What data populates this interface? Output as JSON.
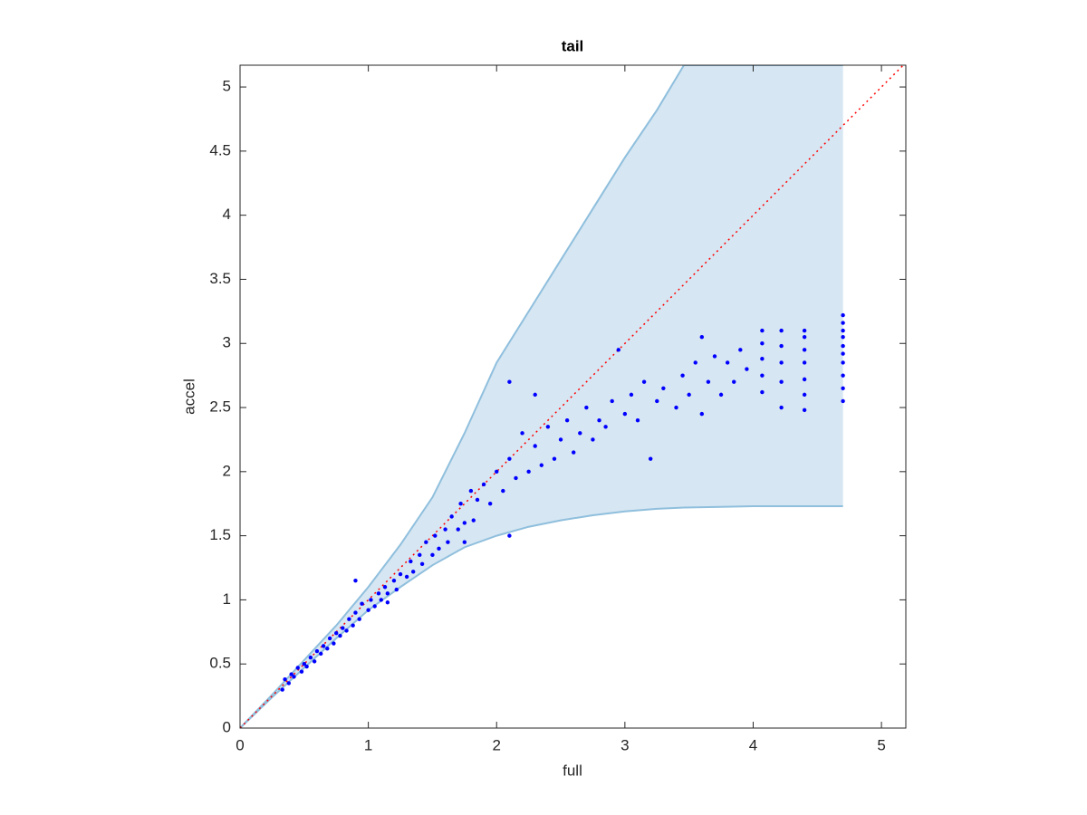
{
  "chart_data": {
    "type": "scatter",
    "title": "tail",
    "x_label": "full",
    "y_label": "accel",
    "xlim": [
      0,
      5.19
    ],
    "ylim": [
      0,
      5.17
    ],
    "xticks": [
      0,
      1,
      2,
      3,
      4,
      5
    ],
    "yticks": [
      0,
      0.5,
      1,
      1.5,
      2,
      2.5,
      3,
      3.5,
      4,
      4.5,
      5
    ],
    "band": {
      "color": "#d6e6f2",
      "edge_color": "#8fbfdd",
      "x": [
        0,
        0.25,
        0.5,
        0.75,
        1,
        1.25,
        1.5,
        1.75,
        2,
        2.25,
        2.5,
        2.75,
        3,
        3.25,
        3.46,
        3.75,
        4,
        4.25,
        4.7
      ],
      "upper": [
        0,
        0.26,
        0.53,
        0.8,
        1.1,
        1.43,
        1.8,
        2.3,
        2.85,
        3.25,
        3.65,
        4.05,
        4.45,
        4.82,
        5.17,
        5.17,
        5.17,
        5.17,
        5.17
      ],
      "lower": [
        0,
        0.24,
        0.47,
        0.7,
        0.92,
        1.1,
        1.27,
        1.41,
        1.5,
        1.57,
        1.62,
        1.66,
        1.69,
        1.71,
        1.72,
        1.725,
        1.73,
        1.73,
        1.73
      ]
    },
    "reference_line": {
      "color": "#ff0000",
      "x": [
        0,
        5.19
      ],
      "values": [
        0,
        5.19
      ]
    },
    "series": [
      {
        "color": "#0000ff",
        "x": [
          0.33,
          0.35,
          0.38,
          0.4,
          0.42,
          0.45,
          0.48,
          0.5,
          0.52,
          0.55,
          0.58,
          0.6,
          0.63,
          0.65,
          0.68,
          0.7,
          0.73,
          0.75,
          0.78,
          0.8,
          0.83,
          0.85,
          0.88,
          0.9,
          0.93,
          0.95,
          1.0,
          1.02,
          1.05,
          1.08,
          1.1,
          1.13,
          1.15,
          1.2,
          1.22,
          1.25,
          1.3,
          1.33,
          1.35,
          1.4,
          1.42,
          1.45,
          1.5,
          1.52,
          1.55,
          1.6,
          1.62,
          1.65,
          1.7,
          1.72,
          1.75,
          1.8,
          1.82,
          1.85,
          1.9,
          1.95,
          2.0,
          2.05,
          2.1,
          2.15,
          2.2,
          2.25,
          2.3,
          2.35,
          2.4,
          2.45,
          2.5,
          2.55,
          2.6,
          2.65,
          2.7,
          2.75,
          2.8,
          2.85,
          2.9,
          3.0,
          3.05,
          3.1,
          3.15,
          3.2,
          3.25,
          3.3,
          3.4,
          3.45,
          3.5,
          3.55,
          3.6,
          3.65,
          3.7,
          3.75,
          3.8,
          3.85,
          3.9,
          3.95,
          4.07,
          4.07,
          4.07,
          4.07,
          4.07,
          4.22,
          4.22,
          4.22,
          4.22,
          4.22,
          4.4,
          4.4,
          4.4,
          4.4,
          4.4,
          4.4,
          4.4,
          4.7,
          4.7,
          4.7,
          4.7,
          4.7,
          4.7,
          4.7,
          4.7,
          4.7,
          4.7,
          2.1,
          2.3,
          2.95,
          3.6,
          1.75,
          2.1,
          0.9,
          1.15
        ],
        "values": [
          0.3,
          0.38,
          0.35,
          0.42,
          0.4,
          0.47,
          0.44,
          0.5,
          0.48,
          0.55,
          0.52,
          0.6,
          0.58,
          0.64,
          0.62,
          0.7,
          0.66,
          0.74,
          0.72,
          0.78,
          0.76,
          0.85,
          0.8,
          0.9,
          0.85,
          0.97,
          0.92,
          1.0,
          0.95,
          1.05,
          1.0,
          1.1,
          1.05,
          1.15,
          1.08,
          1.2,
          1.18,
          1.3,
          1.22,
          1.35,
          1.28,
          1.45,
          1.35,
          1.5,
          1.4,
          1.55,
          1.45,
          1.65,
          1.55,
          1.75,
          1.6,
          1.85,
          1.62,
          1.78,
          1.9,
          1.75,
          2.0,
          1.85,
          2.1,
          1.95,
          2.3,
          2.0,
          2.2,
          2.05,
          2.35,
          2.1,
          2.25,
          2.4,
          2.15,
          2.3,
          2.5,
          2.25,
          2.4,
          2.35,
          2.55,
          2.45,
          2.6,
          2.4,
          2.7,
          2.1,
          2.55,
          2.65,
          2.5,
          2.75,
          2.6,
          2.85,
          2.45,
          2.7,
          2.9,
          2.6,
          2.85,
          2.7,
          2.95,
          2.8,
          2.62,
          2.75,
          2.88,
          3.0,
          3.1,
          2.5,
          2.7,
          2.85,
          2.98,
          3.1,
          2.48,
          2.6,
          2.72,
          2.85,
          2.95,
          3.05,
          3.1,
          2.55,
          2.65,
          2.75,
          2.85,
          2.92,
          2.98,
          3.05,
          3.1,
          3.16,
          3.22,
          2.7,
          2.6,
          2.95,
          3.05,
          1.45,
          1.5,
          1.15,
          0.98
        ]
      }
    ]
  }
}
